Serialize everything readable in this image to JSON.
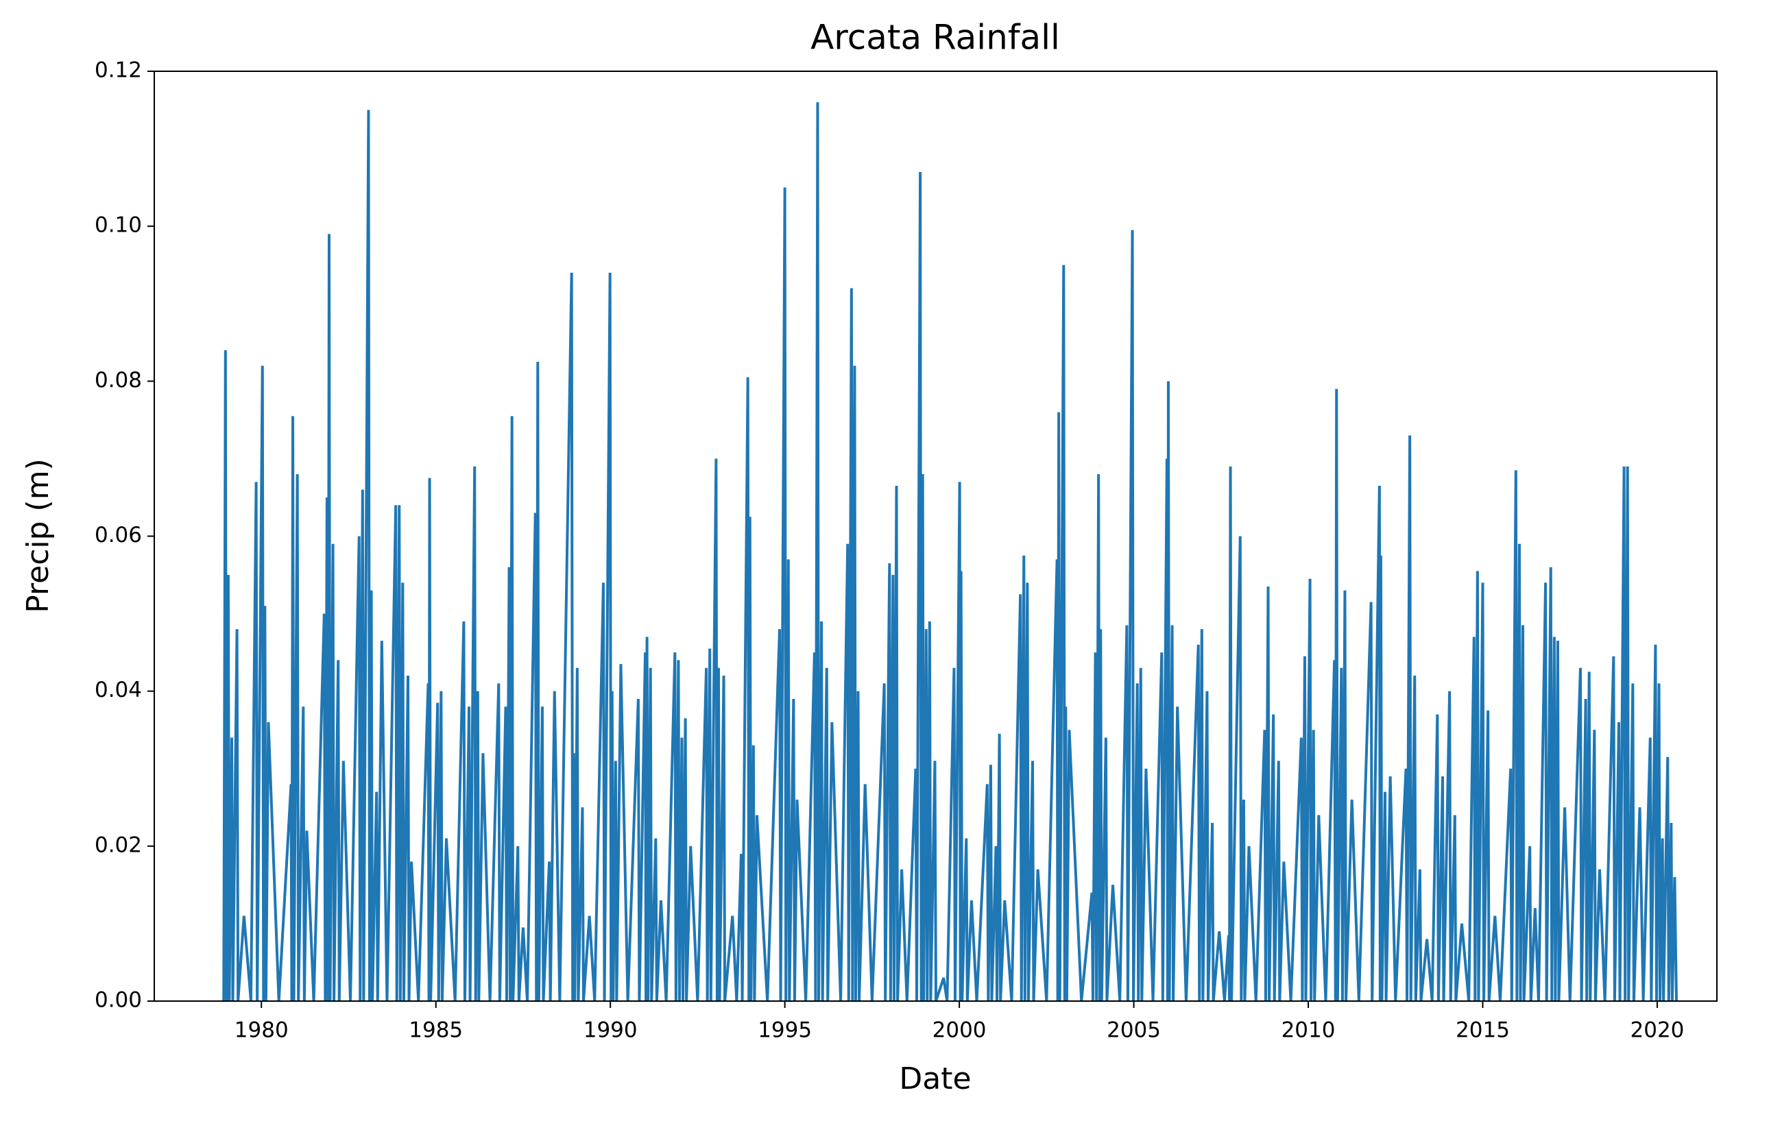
{
  "chart_data": {
    "type": "line",
    "title": "Arcata Rainfall",
    "x_label": "Date",
    "y_label": "Precip (m)",
    "color": "#1f77b4",
    "xlim": [
      1976.93,
      2021.71
    ],
    "xticks": [
      1980,
      1985,
      1990,
      1995,
      2000,
      2005,
      2010,
      2015,
      2020
    ],
    "ylim": [
      0,
      0.12
    ],
    "yticks": [
      {
        "value": 0,
        "label": "0.00"
      },
      0.02,
      0.04,
      0.06,
      0.08,
      {
        "value": 0.1,
        "label": "0.10"
      },
      0.12
    ],
    "x": [
      1978.92,
      1978.97,
      1979.0,
      1979.05,
      1979.08,
      1979.15,
      1979.18,
      1979.3,
      1979.33,
      1979.5,
      1979.7,
      1979.85,
      1979.88,
      1980.03,
      1980.06,
      1980.1,
      1980.13,
      1980.2,
      1980.5,
      1980.85,
      1980.87,
      1980.9,
      1980.93,
      1981.03,
      1981.06,
      1981.2,
      1981.23,
      1981.3,
      1981.5,
      1981.8,
      1981.83,
      1981.88,
      1981.91,
      1981.94,
      1981.97,
      1982.05,
      1982.08,
      1982.2,
      1982.23,
      1982.35,
      1982.55,
      1982.8,
      1982.83,
      1982.9,
      1982.93,
      1983.07,
      1983.1,
      1983.15,
      1983.18,
      1983.3,
      1983.33,
      1983.45,
      1983.6,
      1983.85,
      1983.88,
      1983.95,
      1983.98,
      1984.05,
      1984.08,
      1984.2,
      1984.23,
      1984.3,
      1984.5,
      1984.78,
      1984.8,
      1984.82,
      1984.85,
      1985.05,
      1985.08,
      1985.15,
      1985.18,
      1985.3,
      1985.55,
      1985.8,
      1985.83,
      1985.95,
      1985.98,
      1986.11,
      1986.14,
      1986.2,
      1986.23,
      1986.35,
      1986.55,
      1986.8,
      1986.83,
      1987.0,
      1987.03,
      1987.1,
      1987.13,
      1987.18,
      1987.21,
      1987.35,
      1987.38,
      1987.5,
      1987.62,
      1987.85,
      1987.88,
      1987.92,
      1987.95,
      1988.05,
      1988.08,
      1988.25,
      1988.28,
      1988.4,
      1988.55,
      1988.89,
      1988.92,
      1988.95,
      1988.98,
      1989.05,
      1989.08,
      1989.2,
      1989.23,
      1989.4,
      1989.55,
      1989.8,
      1989.83,
      1989.99,
      1990.02,
      1990.05,
      1990.08,
      1990.15,
      1990.18,
      1990.3,
      1990.5,
      1990.8,
      1990.83,
      1991.0,
      1991.02,
      1991.05,
      1991.08,
      1991.15,
      1991.18,
      1991.3,
      1991.33,
      1991.45,
      1991.6,
      1991.85,
      1991.88,
      1991.95,
      1991.98,
      1992.05,
      1992.08,
      1992.15,
      1992.18,
      1992.3,
      1992.5,
      1992.75,
      1992.78,
      1992.85,
      1992.88,
      1993.03,
      1993.06,
      1993.1,
      1993.13,
      1993.25,
      1993.28,
      1993.5,
      1993.62,
      1993.75,
      1993.78,
      1993.94,
      1993.97,
      1994.0,
      1994.03,
      1994.1,
      1994.13,
      1994.2,
      1994.5,
      1994.85,
      1994.88,
      1995.0,
      1995.03,
      1995.1,
      1995.13,
      1995.25,
      1995.28,
      1995.35,
      1995.6,
      1995.85,
      1995.88,
      1995.94,
      1995.97,
      1996.05,
      1996.08,
      1996.2,
      1996.23,
      1996.35,
      1996.6,
      1996.8,
      1996.83,
      1996.91,
      1996.94,
      1997.0,
      1997.03,
      1997.1,
      1997.13,
      1997.3,
      1997.5,
      1997.85,
      1997.88,
      1998.0,
      1998.03,
      1998.1,
      1998.13,
      1998.2,
      1998.23,
      1998.35,
      1998.5,
      1998.75,
      1998.78,
      1998.88,
      1998.91,
      1998.95,
      1998.98,
      1999.05,
      1999.08,
      1999.15,
      1999.18,
      1999.3,
      1999.33,
      1999.55,
      1999.65,
      1999.85,
      1999.88,
      2000.01,
      2000.03,
      2000.05,
      2000.08,
      2000.2,
      2000.23,
      2000.35,
      2000.5,
      2000.8,
      2000.83,
      2000.9,
      2000.93,
      2001.05,
      2001.08,
      2001.15,
      2001.18,
      2001.3,
      2001.5,
      2001.75,
      2001.78,
      2001.85,
      2001.88,
      2001.95,
      2001.98,
      2002.1,
      2002.13,
      2002.25,
      2002.5,
      2002.8,
      2002.82,
      2002.85,
      2002.88,
      2002.99,
      2003.02,
      2003.05,
      2003.08,
      2003.15,
      2003.5,
      2003.8,
      2003.83,
      2003.9,
      2003.93,
      2003.99,
      2004.02,
      2004.05,
      2004.08,
      2004.2,
      2004.23,
      2004.4,
      2004.6,
      2004.8,
      2004.83,
      2004.96,
      2004.99,
      2005.1,
      2005.13,
      2005.2,
      2005.23,
      2005.35,
      2005.55,
      2005.8,
      2005.83,
      2005.95,
      2005.97,
      2005.99,
      2006.02,
      2006.1,
      2006.13,
      2006.25,
      2006.5,
      2006.85,
      2006.88,
      2006.95,
      2006.98,
      2007.1,
      2007.13,
      2007.25,
      2007.28,
      2007.45,
      2007.6,
      2007.72,
      2007.74,
      2007.77,
      2007.8,
      2008.05,
      2008.08,
      2008.15,
      2008.18,
      2008.3,
      2008.5,
      2008.75,
      2008.78,
      2008.85,
      2008.88,
      2009.0,
      2009.03,
      2009.15,
      2009.18,
      2009.3,
      2009.5,
      2009.8,
      2009.83,
      2009.9,
      2009.93,
      2010.05,
      2010.08,
      2010.15,
      2010.18,
      2010.3,
      2010.5,
      2010.75,
      2010.78,
      2010.81,
      2010.84,
      2010.95,
      2010.98,
      2011.05,
      2011.08,
      2011.25,
      2011.45,
      2011.8,
      2011.83,
      2012.04,
      2012.06,
      2012.08,
      2012.11,
      2012.2,
      2012.23,
      2012.35,
      2012.5,
      2012.8,
      2012.83,
      2012.91,
      2012.94,
      2013.05,
      2013.08,
      2013.2,
      2013.23,
      2013.4,
      2013.55,
      2013.7,
      2013.73,
      2013.85,
      2013.88,
      2014.05,
      2014.08,
      2014.2,
      2014.23,
      2014.4,
      2014.6,
      2014.75,
      2014.78,
      2014.85,
      2014.88,
      2015.0,
      2015.03,
      2015.15,
      2015.18,
      2015.35,
      2015.5,
      2015.8,
      2015.83,
      2015.95,
      2015.98,
      2016.05,
      2016.08,
      2016.15,
      2016.18,
      2016.35,
      2016.38,
      2016.5,
      2016.6,
      2016.8,
      2016.83,
      2016.95,
      2016.98,
      2017.05,
      2017.08,
      2017.15,
      2017.18,
      2017.35,
      2017.5,
      2017.8,
      2017.83,
      2017.95,
      2017.98,
      2018.05,
      2018.08,
      2018.2,
      2018.23,
      2018.35,
      2018.5,
      2018.75,
      2018.78,
      2018.9,
      2018.93,
      2019.05,
      2019.08,
      2019.15,
      2019.18,
      2019.3,
      2019.33,
      2019.5,
      2019.6,
      2019.8,
      2019.83,
      2019.95,
      2019.98,
      2020.05,
      2020.08,
      2020.15,
      2020.18,
      2020.3,
      2020.33,
      2020.4,
      2020.43,
      2020.5,
      2020.55
    ],
    "values": [
      0,
      0.084,
      0,
      0.055,
      0,
      0.034,
      0,
      0.048,
      0,
      0.011,
      0,
      0.067,
      0,
      0.082,
      0,
      0.051,
      0,
      0.036,
      0,
      0.028,
      0,
      0.0755,
      0,
      0.068,
      0,
      0.038,
      0,
      0.022,
      0,
      0.05,
      0,
      0.065,
      0,
      0.099,
      0,
      0.059,
      0,
      0.044,
      0,
      0.031,
      0,
      0.06,
      0,
      0.066,
      0,
      0.115,
      0,
      0.053,
      0,
      0.027,
      0,
      0.0465,
      0,
      0.064,
      0,
      0.064,
      0,
      0.054,
      0,
      0.042,
      0,
      0.018,
      0,
      0.041,
      0,
      0.0675,
      0,
      0.0385,
      0,
      0.04,
      0,
      0.021,
      0,
      0.049,
      0,
      0.038,
      0,
      0.069,
      0,
      0.04,
      0,
      0.032,
      0,
      0.041,
      0,
      0.038,
      0,
      0.056,
      0,
      0.0755,
      0,
      0.02,
      0,
      0.0095,
      0,
      0.063,
      0,
      0.0825,
      0,
      0.038,
      0,
      0.018,
      0,
      0.04,
      0,
      0.094,
      0,
      0.032,
      0,
      0.043,
      0,
      0.025,
      0,
      0.011,
      0,
      0.054,
      0,
      0.094,
      0,
      0.04,
      0,
      0.031,
      0,
      0.0435,
      0,
      0.039,
      0,
      0.045,
      0,
      0.047,
      0,
      0.043,
      0,
      0.021,
      0,
      0.013,
      0,
      0.045,
      0,
      0.044,
      0,
      0.034,
      0,
      0.0365,
      0,
      0.02,
      0,
      0.043,
      0,
      0.0455,
      0,
      0.07,
      0,
      0.043,
      0,
      0.042,
      0,
      0.011,
      0,
      0.019,
      0,
      0.0805,
      0,
      0.0625,
      0,
      0.033,
      0,
      0.024,
      0,
      0.048,
      0,
      0.105,
      0,
      0.057,
      0,
      0.039,
      0,
      0.026,
      0,
      0.045,
      0,
      0.116,
      0,
      0.049,
      0,
      0.043,
      0,
      0.036,
      0,
      0.059,
      0,
      0.092,
      0,
      0.082,
      0,
      0.04,
      0,
      0.028,
      0,
      0.041,
      0,
      0.0565,
      0,
      0.055,
      0,
      0.0665,
      0,
      0.017,
      0,
      0.03,
      0,
      0.107,
      0,
      0.068,
      0,
      0.048,
      0,
      0.049,
      0,
      0.031,
      0,
      0.003,
      0,
      0.043,
      0,
      0.067,
      0,
      0.0555,
      0,
      0.021,
      0,
      0.013,
      0,
      0.028,
      0,
      0.0305,
      0,
      0.02,
      0,
      0.0345,
      0,
      0.013,
      0,
      0.0525,
      0,
      0.0575,
      0,
      0.054,
      0,
      0.031,
      0,
      0.017,
      0,
      0.057,
      0,
      0.076,
      0,
      0.095,
      0,
      0.038,
      0,
      0.035,
      0,
      0.014,
      0,
      0.045,
      0,
      0.068,
      0,
      0.048,
      0,
      0.034,
      0,
      0.015,
      0,
      0.0485,
      0,
      0.0995,
      0,
      0.041,
      0,
      0.043,
      0,
      0.03,
      0,
      0.045,
      0,
      0.07,
      0,
      0.08,
      0,
      0.0485,
      0,
      0.038,
      0,
      0.046,
      0,
      0.048,
      0,
      0.04,
      0,
      0.023,
      0,
      0.009,
      0,
      0.0085,
      0,
      0.069,
      0,
      0.06,
      0,
      0.026,
      0,
      0.02,
      0,
      0.035,
      0,
      0.0535,
      0,
      0.037,
      0,
      0.031,
      0,
      0.018,
      0,
      0.034,
      0,
      0.0445,
      0,
      0.0545,
      0,
      0.035,
      0,
      0.024,
      0,
      0.044,
      0,
      0.079,
      0,
      0.043,
      0,
      0.053,
      0,
      0.026,
      0,
      0.0515,
      0,
      0.0665,
      0,
      0.0575,
      0,
      0.027,
      0,
      0.029,
      0,
      0.03,
      0,
      0.073,
      0,
      0.042,
      0,
      0.017,
      0,
      0.008,
      0,
      0.037,
      0,
      0.029,
      0,
      0.04,
      0,
      0.024,
      0,
      0.01,
      0,
      0.047,
      0,
      0.0555,
      0,
      0.054,
      0,
      0.0375,
      0,
      0.011,
      0,
      0.03,
      0,
      0.0685,
      0,
      0.059,
      0,
      0.0485,
      0,
      0.02,
      0,
      0.012,
      0,
      0.054,
      0,
      0.056,
      0,
      0.047,
      0,
      0.0465,
      0,
      0.025,
      0,
      0.043,
      0,
      0.039,
      0,
      0.0425,
      0,
      0.035,
      0,
      0.017,
      0,
      0.0445,
      0,
      0.036,
      0,
      0.069,
      0,
      0.069,
      0,
      0.041,
      0,
      0.025,
      0,
      0.034,
      0,
      0.046,
      0,
      0.041,
      0,
      0.021,
      0,
      0.0315,
      0,
      0.023,
      0,
      0.016,
      0
    ]
  }
}
